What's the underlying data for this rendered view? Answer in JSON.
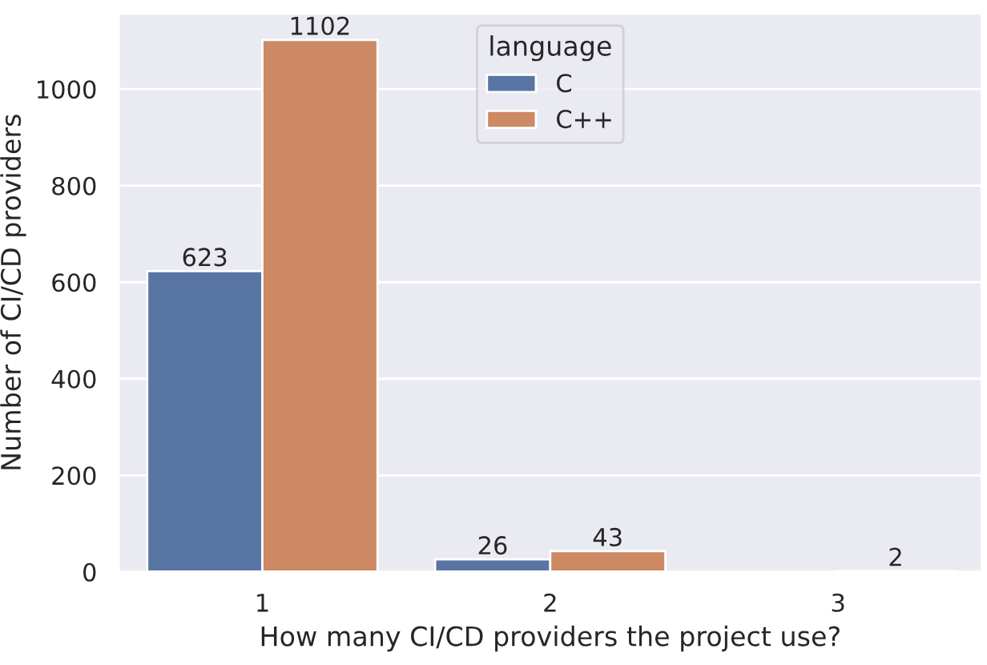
{
  "chart_data": {
    "type": "bar",
    "xlabel": "How many CI/CD providers the project use?",
    "ylabel": "Number of CI/CD providers",
    "legend_title": "language",
    "categories": [
      "1",
      "2",
      "3"
    ],
    "series": [
      {
        "name": "C",
        "color": "#5975a4",
        "values": [
          623,
          26,
          null
        ]
      },
      {
        "name": "C++",
        "color": "#cc8963",
        "values": [
          1102,
          43,
          2
        ]
      }
    ],
    "ylim": [
      0,
      1157
    ],
    "yticks": [
      0,
      200,
      400,
      600,
      800,
      1000
    ],
    "grid": "y",
    "legend": "top center",
    "data_labels": true
  }
}
